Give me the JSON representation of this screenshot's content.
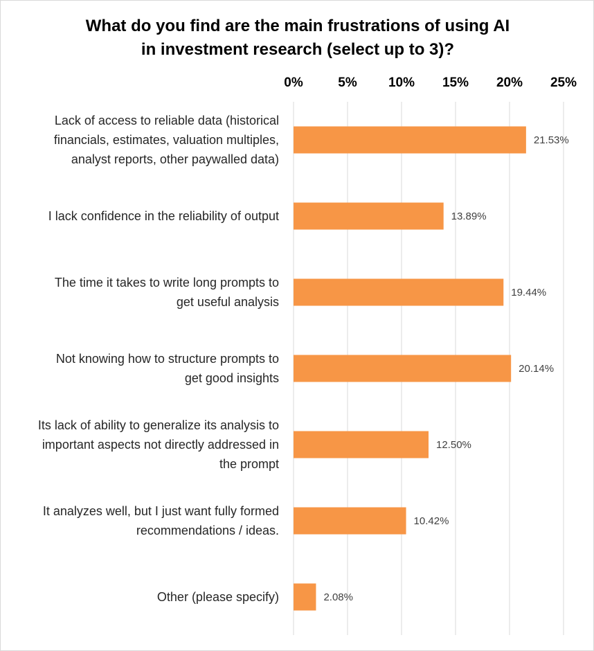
{
  "chart_data": {
    "type": "bar",
    "orientation": "horizontal",
    "title": "What do you find are the main frustrations of using AI in investment research (select up to 3)?",
    "title_lines": [
      "What do you find are the main frustrations of using AI",
      "in investment research (select up to 3)?"
    ],
    "categories": [
      "Lack of access to reliable data (historical financials, estimates, valuation multiples, analyst reports, other paywalled data)",
      "I lack confidence in the reliability of output",
      "The time it takes to write long prompts to get useful analysis",
      "Not knowing how to structure prompts to get good insights",
      "Its lack of ability to generalize its analysis to important aspects not directly addressed in the prompt",
      "It analyzes well, but I just want fully formed recommendations / ideas.",
      "Other (please specify)"
    ],
    "category_lines": [
      [
        "Lack of access to reliable data (historical",
        "financials, estimates, valuation multiples,",
        "analyst reports, other paywalled data)"
      ],
      [
        "I lack confidence in the reliability of output"
      ],
      [
        "The time it takes to write long prompts to",
        "get useful analysis"
      ],
      [
        "Not knowing how to structure prompts to",
        "get good insights"
      ],
      [
        "Its lack of ability to generalize its analysis to",
        "important aspects not directly addressed in",
        "the prompt"
      ],
      [
        "It analyzes well, but I just want fully formed",
        "recommendations / ideas."
      ],
      [
        "Other (please specify)"
      ]
    ],
    "values": [
      21.53,
      13.89,
      19.44,
      20.14,
      12.5,
      10.42,
      2.08
    ],
    "data_labels": [
      "21.53%",
      "13.89%",
      "19.44%",
      "20.14%",
      "12.50%",
      "10.42%",
      "2.08%"
    ],
    "xlim": [
      0,
      25
    ],
    "ticks": [
      0,
      5,
      10,
      15,
      20,
      25
    ],
    "tick_labels": [
      "0%",
      "5%",
      "10%",
      "15%",
      "20%",
      "25%"
    ],
    "xlabel": "",
    "ylabel": "",
    "grid": true,
    "legend": "none",
    "axis_position": "top",
    "colors": {
      "bar": "#F79646",
      "grid": "#d9d9d9",
      "title": "#000000",
      "category_text": "#262626",
      "data_label_text": "#404040"
    }
  }
}
